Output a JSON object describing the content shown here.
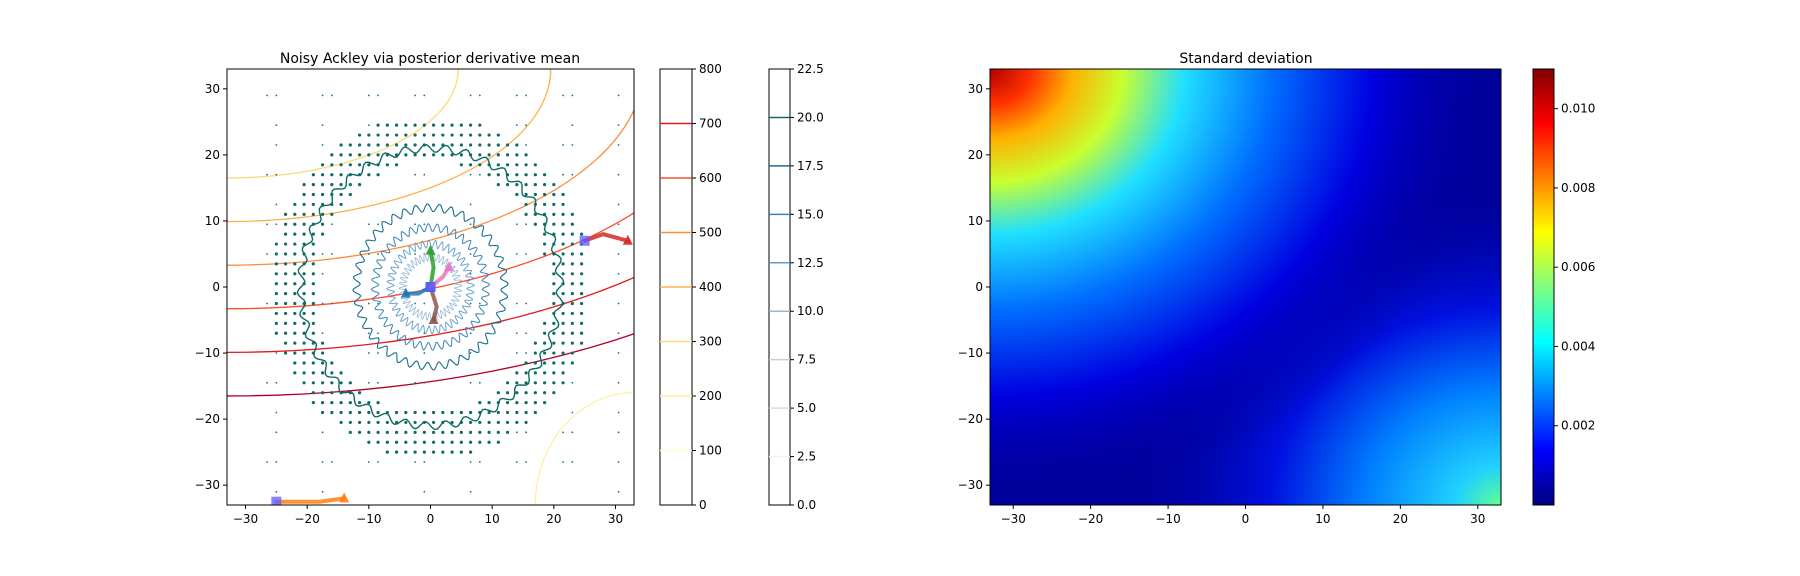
{
  "charts": [
    {
      "id": "left",
      "type": "contour",
      "title": "Noisy Ackley via posterior derivative mean",
      "xlim": [
        -33,
        33
      ],
      "ylim": [
        -33,
        33
      ],
      "xticks": [
        -30,
        -20,
        -10,
        0,
        10,
        20,
        30
      ],
      "yticks": [
        -30,
        -20,
        -10,
        0,
        10,
        20,
        30
      ],
      "xtick_labels": [
        "−30",
        "−20",
        "−10",
        "0",
        "10",
        "20",
        "30"
      ],
      "ytick_labels": [
        "−30",
        "−20",
        "−10",
        "0",
        "10",
        "20",
        "30"
      ],
      "colorbars": [
        {
          "id": "cb1",
          "range": [
            0,
            800
          ],
          "ticks": [
            0,
            100,
            200,
            300,
            400,
            500,
            600,
            700,
            800
          ],
          "tick_labels": [
            "0",
            "100",
            "200",
            "300",
            "400",
            "500",
            "600",
            "700",
            "800"
          ],
          "colors": [
            "#ffffcc",
            "#ffeda0",
            "#fed976",
            "#feb24c",
            "#fd8d3c",
            "#fc4e2a",
            "#e31a1c",
            "#b10026"
          ]
        },
        {
          "id": "cb2",
          "range": [
            0,
            22.5
          ],
          "ticks": [
            0,
            2.5,
            5,
            7.5,
            10,
            12.5,
            15,
            17.5,
            20,
            22.5
          ],
          "tick_labels": [
            "0.0",
            "2.5",
            "5.0",
            "7.5",
            "10.0",
            "12.5",
            "15.0",
            "17.5",
            "20.0",
            "22.5"
          ],
          "colors": [
            "#f2f2f2",
            "#dcdcdc",
            "#c2cfdc",
            "#93b7d4",
            "#5e9bc6",
            "#3a84b3",
            "#1a6f8f",
            "#0f6b66"
          ]
        }
      ]
    },
    {
      "id": "right",
      "type": "heatmap",
      "title": "Standard deviation",
      "xlim": [
        -33,
        33
      ],
      "ylim": [
        -33,
        33
      ],
      "xticks": [
        -30,
        -20,
        -10,
        0,
        10,
        20,
        30
      ],
      "yticks": [
        -30,
        -20,
        -10,
        0,
        10,
        20,
        30
      ],
      "xtick_labels": [
        "−30",
        "−20",
        "−10",
        "0",
        "10",
        "20",
        "30"
      ],
      "ytick_labels": [
        "−30",
        "−20",
        "−10",
        "0",
        "10",
        "20",
        "30"
      ],
      "colormap": "jet",
      "colorbar": {
        "range": [
          0,
          0.011
        ],
        "ticks": [
          0.002,
          0.004,
          0.006,
          0.008,
          0.01
        ],
        "tick_labels": [
          "0.002",
          "0.004",
          "0.006",
          "0.008",
          "0.010"
        ]
      }
    }
  ]
}
